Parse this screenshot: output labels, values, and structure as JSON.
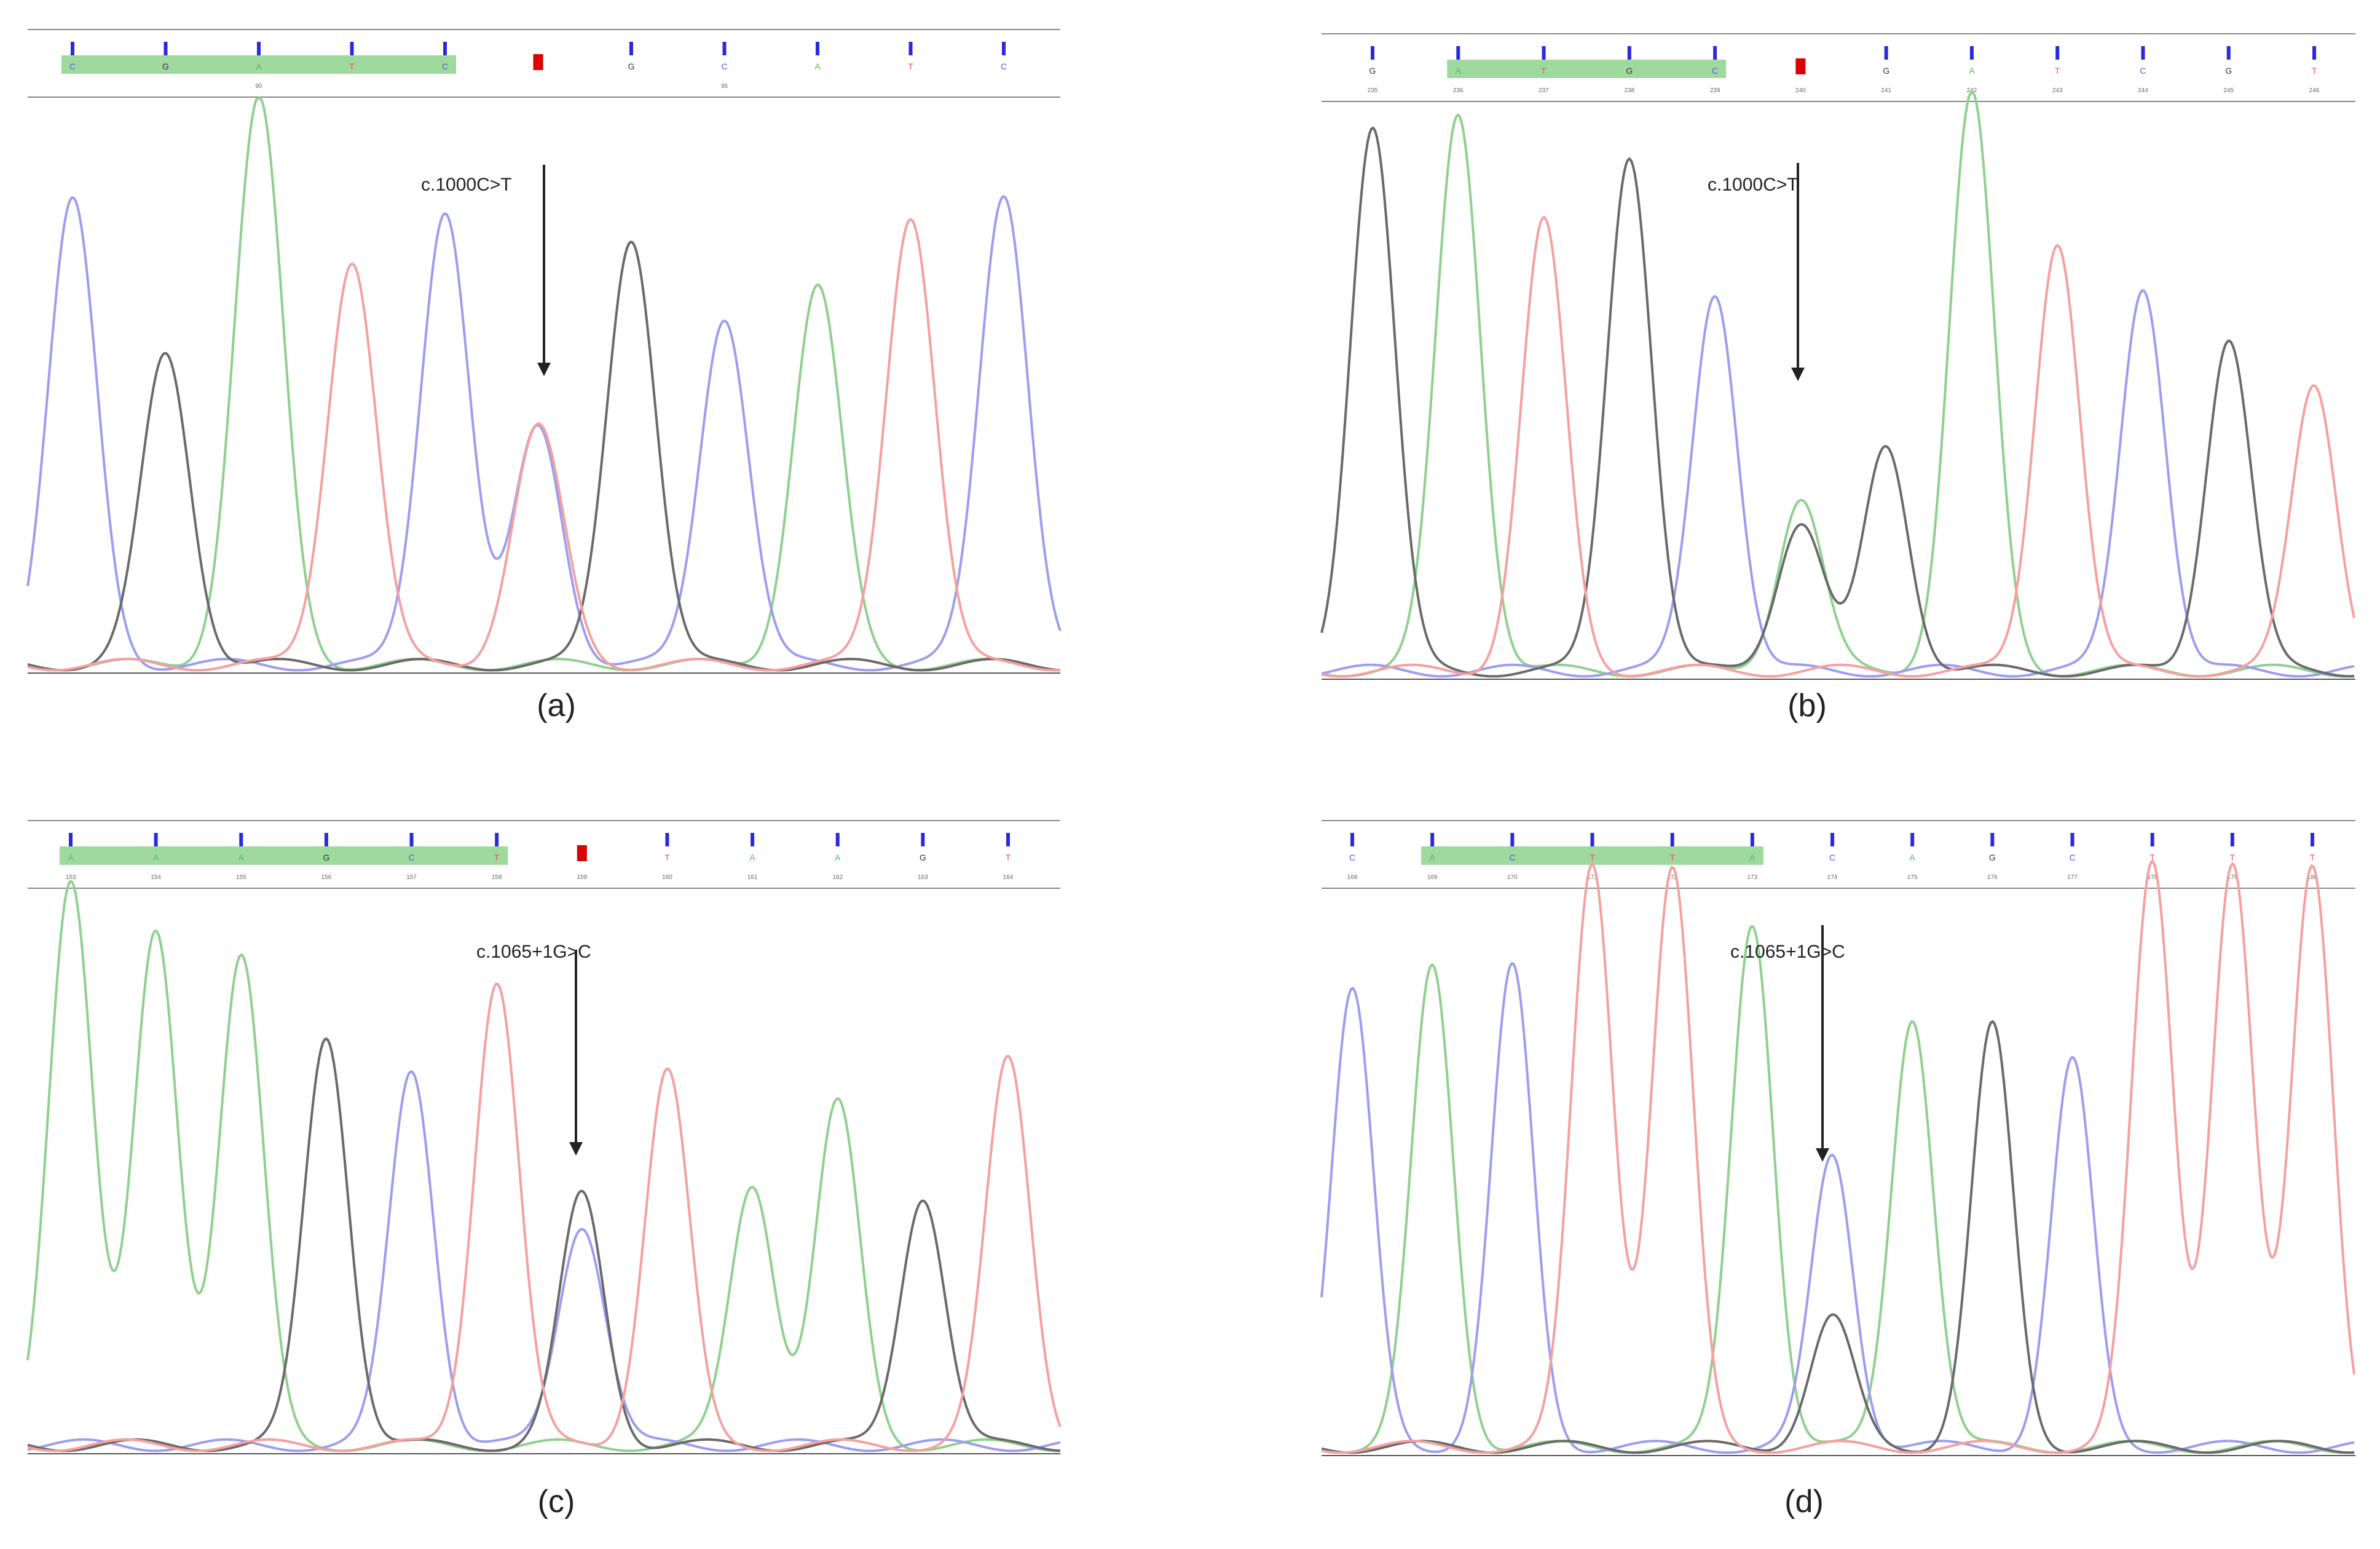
{
  "figure": {
    "panels": [
      {
        "id": "a",
        "caption": "(a)",
        "mutation": "c.1000C>T",
        "bases": [
          "C",
          "G",
          "A",
          "T",
          "C",
          "N",
          "G",
          "C",
          "A",
          "T",
          "C"
        ],
        "highlight_bases": [
          0,
          4
        ],
        "position_labels": [
          "90",
          "95"
        ],
        "peaks": [
          {
            "base": "C",
            "height": 0.82
          },
          {
            "base": "G",
            "height": 0.55
          },
          {
            "base": "A",
            "height": 1.0
          },
          {
            "base": "T",
            "height": 0.72
          },
          {
            "base": "C",
            "height": 0.81
          },
          {
            "base": "C",
            "height": 0.42,
            "secondary": "T",
            "secondary_height": 0.42
          },
          {
            "base": "G",
            "height": 0.76
          },
          {
            "base": "C",
            "height": 0.62
          },
          {
            "base": "A",
            "height": 0.67
          },
          {
            "base": "T",
            "height": 0.8
          },
          {
            "base": "C",
            "height": 0.84
          }
        ]
      },
      {
        "id": "b",
        "caption": "(b)",
        "mutation": "c.1000C>T",
        "bases": [
          "G",
          "A",
          "T",
          "G",
          "C",
          "N",
          "G",
          "A",
          "T",
          "C",
          "G",
          "T"
        ],
        "highlight_bases": [
          1,
          4
        ],
        "position_labels": [
          "235",
          "236",
          "237",
          "238",
          "239",
          "240",
          "241",
          "242",
          "243",
          "244",
          "245",
          "246"
        ],
        "peaks": [
          {
            "base": "G",
            "height": 0.95
          },
          {
            "base": "A",
            "height": 0.97
          },
          {
            "base": "T",
            "height": 0.78
          },
          {
            "base": "G",
            "height": 0.9
          },
          {
            "base": "C",
            "height": 0.66
          },
          {
            "base": "A",
            "height": 0.3,
            "secondary": "G",
            "secondary_height": 0.26
          },
          {
            "base": "G",
            "height": 0.39
          },
          {
            "base": "A",
            "height": 1.0
          },
          {
            "base": "T",
            "height": 0.75
          },
          {
            "base": "C",
            "height": 0.67
          },
          {
            "base": "G",
            "height": 0.58
          },
          {
            "base": "T",
            "height": 0.5
          }
        ]
      },
      {
        "id": "c",
        "caption": "(c)",
        "mutation": "c.1065+1G>C",
        "bases": [
          "A",
          "A",
          "A",
          "G",
          "C",
          "T",
          "N",
          "T",
          "A",
          "A",
          "G",
          "T"
        ],
        "highlight_bases": [
          0,
          5
        ],
        "position_labels": [
          "153",
          "154",
          "155",
          "156",
          "157",
          "158",
          "159",
          "160",
          "161",
          "162",
          "163",
          "164"
        ],
        "peaks": [
          {
            "base": "A",
            "height": 1.0
          },
          {
            "base": "A",
            "height": 0.9
          },
          {
            "base": "A",
            "height": 0.86
          },
          {
            "base": "G",
            "height": 0.72
          },
          {
            "base": "C",
            "height": 0.66
          },
          {
            "base": "T",
            "height": 0.82
          },
          {
            "base": "G",
            "height": 0.44,
            "secondary": "C",
            "secondary_height": 0.39
          },
          {
            "base": "T",
            "height": 0.66
          },
          {
            "base": "A",
            "height": 0.46
          },
          {
            "base": "A",
            "height": 0.6
          },
          {
            "base": "G",
            "height": 0.44
          },
          {
            "base": "T",
            "height": 0.68
          }
        ]
      },
      {
        "id": "d",
        "caption": "(d)",
        "mutation": "c.1065+1G>C",
        "bases": [
          "C",
          "A",
          "C",
          "T",
          "T",
          "A",
          "C",
          "A",
          "G",
          "C",
          "T",
          "T",
          "T"
        ],
        "highlight_bases": [
          1,
          5
        ],
        "position_labels": [
          "168",
          "169",
          "170",
          "171",
          "172",
          "173",
          "174",
          "175",
          "176",
          "177",
          "178",
          "179",
          "180"
        ],
        "peaks": [
          {
            "base": "C",
            "height": 0.78
          },
          {
            "base": "A",
            "height": 0.82
          },
          {
            "base": "C",
            "height": 0.82
          },
          {
            "base": "T",
            "height": 1.0
          },
          {
            "base": "T",
            "height": 0.99
          },
          {
            "base": "A",
            "height": 0.9
          },
          {
            "base": "C",
            "height": 0.5,
            "secondary": "G",
            "secondary_height": 0.22
          },
          {
            "base": "A",
            "height": 0.74
          },
          {
            "base": "G",
            "height": 0.72
          },
          {
            "base": "C",
            "height": 0.66
          },
          {
            "base": "T",
            "height": 1.0
          },
          {
            "base": "T",
            "height": 1.0
          },
          {
            "base": "T",
            "height": 1.0
          }
        ]
      }
    ],
    "colors": {
      "A": "#5cb85c",
      "C": "#5555e6",
      "G": "#333333",
      "T": "#ee5555",
      "N": "#dd0000",
      "peak_A": "#8fd08f",
      "peak_C": "#9d9df0",
      "peak_G": "#6a6a6a",
      "peak_T": "#f5a0a0",
      "highlight": "#9ed99e",
      "quality_bar": "#2a2adc",
      "axis": "#555555",
      "arrow": "#222222"
    }
  }
}
